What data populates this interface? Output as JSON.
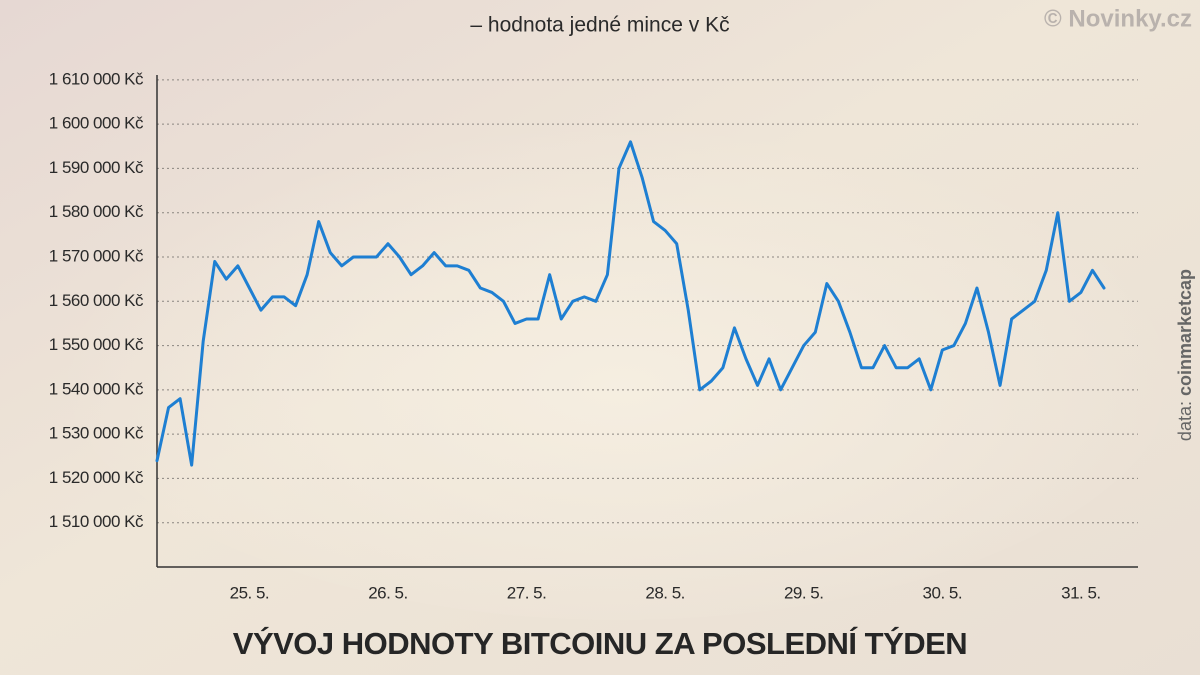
{
  "chart_data": {
    "type": "line",
    "title": "VÝVOJ HODNOTY BITCOINU ZA POSLEDNÍ TÝDEN",
    "subtitle": "– hodnota jedné mince v Kč",
    "credit": "© Novinky.cz",
    "source": {
      "prefix": "data:",
      "name": "coinmarketcap"
    },
    "color": "#1e7fd2",
    "grid": true,
    "categories": [
      null,
      null,
      null,
      null,
      null,
      null,
      null,
      null,
      "25. 5.",
      null,
      null,
      null,
      null,
      null,
      null,
      null,
      null,
      null,
      null,
      null,
      "26. 5.",
      null,
      null,
      null,
      null,
      null,
      null,
      null,
      null,
      null,
      null,
      null,
      "27. 5.",
      null,
      null,
      null,
      null,
      null,
      null,
      null,
      null,
      null,
      null,
      null,
      "28. 5.",
      null,
      null,
      null,
      null,
      null,
      null,
      null,
      null,
      null,
      null,
      null,
      "29. 5.",
      null,
      null,
      null,
      null,
      null,
      null,
      null,
      null,
      null,
      null,
      null,
      "30. 5.",
      null,
      null,
      null,
      null,
      null,
      null,
      null,
      null,
      null,
      null,
      null,
      "31. 5.",
      null,
      null
    ],
    "values": [
      1524000,
      1536000,
      1538000,
      1523000,
      1551000,
      1569000,
      1565000,
      1568000,
      1563000,
      1558000,
      1561000,
      1561000,
      1559000,
      1566000,
      1578000,
      1571000,
      1568000,
      1570000,
      1570000,
      1570000,
      1573000,
      1570000,
      1566000,
      1568000,
      1571000,
      1568000,
      1568000,
      1567000,
      1563000,
      1562000,
      1560000,
      1555000,
      1556000,
      1556000,
      1566000,
      1556000,
      1560000,
      1561000,
      1560000,
      1566000,
      1590000,
      1596000,
      1588000,
      1578000,
      1576000,
      1573000,
      1558000,
      1540000,
      1542000,
      1545000,
      1554000,
      1547000,
      1541000,
      1547000,
      1540000,
      1545000,
      1550000,
      1553000,
      1564000,
      1560000,
      1553000,
      1545000,
      1545000,
      1550000,
      1545000,
      1545000,
      1547000,
      1540000,
      1549000,
      1550000,
      1555000,
      1563000,
      1553000,
      1541000,
      1556000,
      1558000,
      1560000,
      1567000,
      1580000,
      1560000,
      1562000,
      1567000,
      1563000
    ],
    "ylim": [
      1500000,
      1612000
    ],
    "yticks": [
      {
        "value": 1510000,
        "label": "1 510 000 Kč"
      },
      {
        "value": 1520000,
        "label": "1 520 000 Kč"
      },
      {
        "value": 1530000,
        "label": "1 530 000 Kč"
      },
      {
        "value": 1540000,
        "label": "1 540 000 Kč"
      },
      {
        "value": 1550000,
        "label": "1 550 000 Kč"
      },
      {
        "value": 1560000,
        "label": "1 560 000 Kč"
      },
      {
        "value": 1570000,
        "label": "1 570 000 Kč"
      },
      {
        "value": 1580000,
        "label": "1 580 000 Kč"
      },
      {
        "value": 1590000,
        "label": "1 590 000 Kč"
      },
      {
        "value": 1600000,
        "label": "1 600 000 Kč"
      },
      {
        "value": 1610000,
        "label": "1 610 000 Kč"
      }
    ]
  }
}
